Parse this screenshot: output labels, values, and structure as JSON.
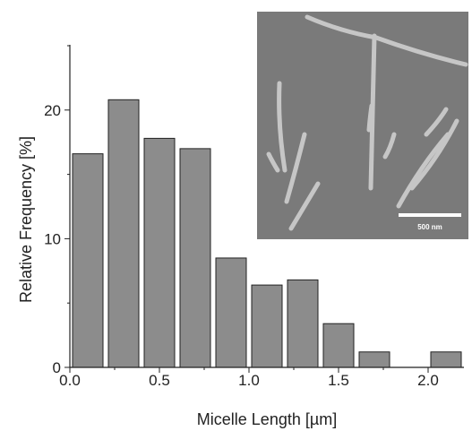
{
  "chart_data": {
    "type": "bar",
    "xlabel": "Micelle Length [µm]",
    "ylabel": "Relative Frequency [%]",
    "xlim": [
      0.0,
      2.2
    ],
    "ylim": [
      0,
      25
    ],
    "x_ticks": [
      "0.0",
      "0.5",
      "1.0",
      "1.5",
      "2.0"
    ],
    "y_ticks": [
      "0",
      "10",
      "20"
    ],
    "bin_width": 0.2,
    "bins": [
      {
        "start": 0.0,
        "end": 0.2,
        "value": 16.6
      },
      {
        "start": 0.2,
        "end": 0.4,
        "value": 20.8
      },
      {
        "start": 0.4,
        "end": 0.6,
        "value": 17.8
      },
      {
        "start": 0.6,
        "end": 0.8,
        "value": 17.0
      },
      {
        "start": 0.8,
        "end": 1.0,
        "value": 8.5
      },
      {
        "start": 1.0,
        "end": 1.2,
        "value": 6.4
      },
      {
        "start": 1.2,
        "end": 1.4,
        "value": 6.8
      },
      {
        "start": 1.4,
        "end": 1.6,
        "value": 3.4
      },
      {
        "start": 1.6,
        "end": 1.8,
        "value": 1.2
      },
      {
        "start": 1.8,
        "end": 2.0,
        "value": 0
      },
      {
        "start": 2.0,
        "end": 2.2,
        "value": 1.2
      }
    ],
    "bar_color": "#8c8c8c",
    "inset": {
      "scale_bar_label": "500 nm"
    }
  }
}
